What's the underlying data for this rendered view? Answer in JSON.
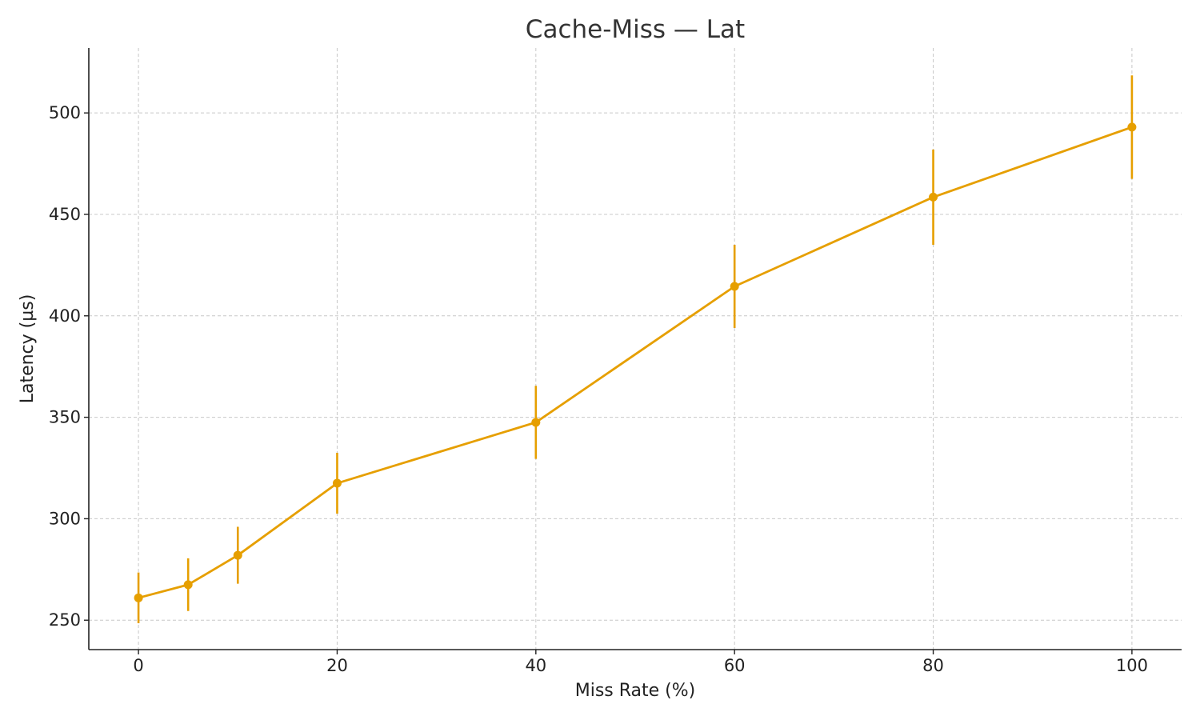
{
  "chart_data": {
    "type": "line",
    "title": "Cache-Miss — Lat",
    "xlabel": "Miss Rate (%)",
    "ylabel": "Latency (µs)",
    "x": [
      0,
      5,
      10,
      20,
      40,
      60,
      80,
      100
    ],
    "series": [
      {
        "values": [
          261,
          267.5,
          282,
          317.5,
          347.5,
          414.5,
          458.5,
          493
        ],
        "error": [
          12.5,
          13,
          14,
          15,
          18,
          20.5,
          23.5,
          25.5
        ],
        "color": "#E69F00"
      }
    ],
    "xticks": [
      0,
      20,
      40,
      60,
      80,
      100
    ],
    "yticks": [
      250,
      300,
      350,
      400,
      450,
      500
    ],
    "xlim": [
      -5,
      105
    ],
    "ylim": [
      235.5,
      532
    ],
    "grid": true,
    "legend": "none"
  }
}
